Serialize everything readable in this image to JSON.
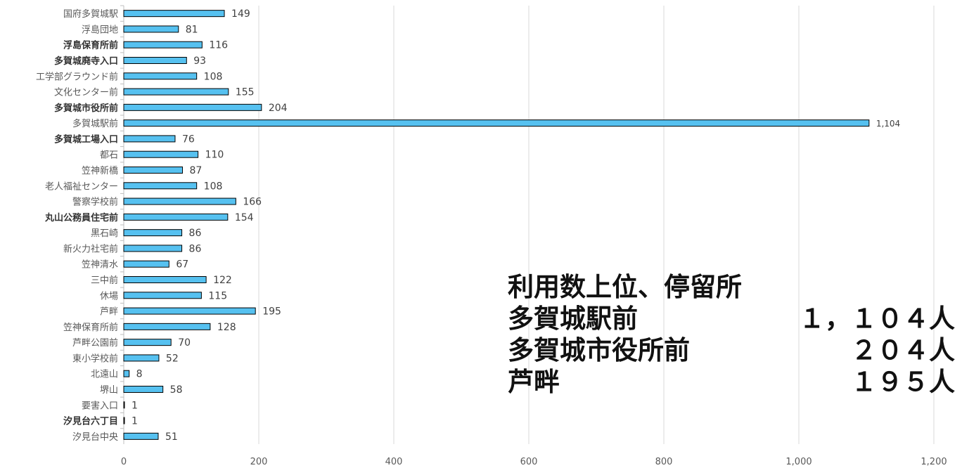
{
  "chart_data": {
    "type": "bar",
    "orientation": "horizontal",
    "categories": [
      "国府多賀城駅",
      "浮島団地",
      "浮島保育所前",
      "多賀城廃寺入口",
      "工学部グラウンド前",
      "文化センター前",
      "多賀城市役所前",
      "多賀城駅前",
      "多賀城工場入口",
      "都石",
      "笠神新橋",
      "老人福祉センター",
      "警察学校前",
      "丸山公務員住宅前",
      "黒石崎",
      "新火力社宅前",
      "笠神清水",
      "三中前",
      "休場",
      "芦畔",
      "笠神保育所前",
      "芦畔公園前",
      "東小学校前",
      "北遠山",
      "堺山",
      "要害入口",
      "汐見台六丁目",
      "汐見台中央"
    ],
    "bold_categories": [
      "浮島保育所前",
      "多賀城廃寺入口",
      "多賀城市役所前",
      "多賀城工場入口",
      "丸山公務員住宅前",
      "汐見台六丁目"
    ],
    "values": [
      149,
      81,
      116,
      93,
      108,
      155,
      204,
      1104,
      76,
      110,
      87,
      108,
      166,
      154,
      86,
      86,
      67,
      122,
      115,
      195,
      128,
      70,
      52,
      8,
      58,
      1,
      1,
      51
    ],
    "value_labels": [
      "149",
      "81",
      "116",
      "93",
      "108",
      "155",
      "204",
      "1,104",
      "76",
      "110",
      "87",
      "108",
      "166",
      "154",
      "86",
      "86",
      "67",
      "122",
      "115",
      "195",
      "128",
      "70",
      "52",
      "8",
      "58",
      "1",
      "1",
      "51"
    ],
    "x_ticks": [
      "0",
      "200",
      "400",
      "600",
      "800",
      "1,000",
      "1,200"
    ],
    "xlim": [
      0,
      1200
    ],
    "grid": "vertical",
    "bar_color": "#56c1f0",
    "bar_outline_color": "#000000"
  },
  "annotation": {
    "title": "利用数上位、停留所",
    "rows": [
      {
        "name": "多賀城駅前",
        "value": "１，１０４人"
      },
      {
        "name": "多賀城市役所前",
        "value": "２０４人"
      },
      {
        "name": "芦畔",
        "value": "１９５人"
      }
    ]
  }
}
